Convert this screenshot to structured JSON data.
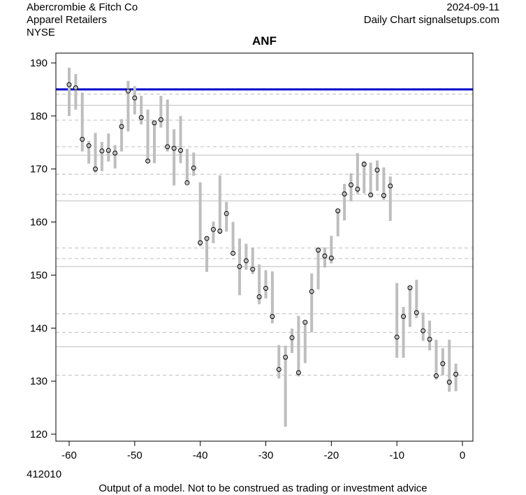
{
  "header": {
    "company": "Abercrombie & Fitch Co",
    "sector": "Apparel Retailers",
    "exchange": "NYSE",
    "date": "2024-09-11",
    "source": "Daily Chart signalsetups.com",
    "code": "412010",
    "disclaimer": "Output of a model. Not to be construed as trading or investment advice"
  },
  "chart_data": {
    "type": "range-bar",
    "title": "ANF",
    "xlim": [
      -62,
      1.5
    ],
    "ylim": [
      118,
      192
    ],
    "xticks": [
      -60,
      -50,
      -40,
      -30,
      -20,
      -10,
      0
    ],
    "yticks": [
      120,
      130,
      140,
      150,
      160,
      170,
      180,
      190
    ],
    "colors": {
      "bar": "#bebebe",
      "reference": "#0000cc",
      "grid": "#bebebe"
    },
    "reference_line": 185.0,
    "solid_levels": [
      182.0,
      172.6,
      164.0,
      151.6,
      136.5
    ],
    "dashed_levels": [
      184.1,
      179.2,
      174.2,
      169.0,
      165.2,
      155.1,
      153.1,
      142.7,
      139.2,
      131.1
    ],
    "x": [
      -60,
      -59,
      -58,
      -57,
      -56,
      -55,
      -54,
      -53,
      -52,
      -51,
      -50,
      -49,
      -48,
      -47,
      -46,
      -45,
      -44,
      -43,
      -42,
      -41,
      -40,
      -39,
      -38,
      -37,
      -36,
      -35,
      -34,
      -33,
      -32,
      -31,
      -30,
      -29,
      -28,
      -27,
      -26,
      -25,
      -24,
      -23,
      -22,
      -21,
      -20,
      -19,
      -18,
      -17,
      -16,
      -15,
      -14,
      -13,
      -12,
      -11,
      -10,
      -9,
      -8,
      -7,
      -6,
      -5,
      -4,
      -3,
      -2,
      -1
    ],
    "high": [
      189.1,
      187.9,
      184.4,
      175.3,
      176.8,
      175.1,
      176.7,
      174.5,
      179.4,
      186.6,
      185.6,
      183.8,
      181.2,
      179.1,
      183.8,
      183.1,
      177.5,
      180.0,
      173.8,
      173.1,
      167.5,
      157.3,
      160.1,
      168.8,
      163.8,
      160.0,
      156.9,
      155.9,
      155.2,
      152.0,
      150.9,
      150.7,
      136.8,
      136.7,
      139.9,
      142.3,
      141.4,
      150.3,
      155.2,
      155.2,
      157.4,
      162.4,
      167.2,
      169.2,
      173.0,
      171.5,
      171.2,
      171.6,
      170.3,
      168.6,
      148.5,
      144.0,
      147.9,
      149.1,
      142.9,
      141.4,
      137.8,
      136.2,
      137.8,
      133.3
    ],
    "low": [
      180.0,
      181.2,
      173.3,
      171.0,
      169.3,
      169.6,
      171.4,
      170.1,
      173.3,
      177.1,
      180.3,
      178.4,
      171.1,
      171.1,
      177.8,
      173.3,
      166.9,
      171.1,
      167.2,
      168.7,
      155.4,
      150.6,
      156.0,
      157.7,
      158.2,
      153.8,
      146.2,
      151.0,
      150.2,
      144.5,
      145.6,
      140.9,
      130.5,
      121.4,
      135.3,
      130.9,
      133.4,
      139.2,
      147.3,
      151.4,
      152.2,
      157.3,
      160.3,
      163.9,
      165.3,
      165.4,
      164.8,
      165.9,
      164.2,
      160.2,
      134.4,
      134.4,
      140.2,
      141.9,
      137.6,
      135.8,
      130.3,
      131.1,
      128.0,
      128.1
    ],
    "close": [
      185.9,
      185.3,
      175.6,
      174.4,
      170.0,
      173.4,
      173.5,
      173.0,
      178.0,
      184.7,
      183.4,
      179.7,
      171.5,
      178.7,
      179.3,
      174.2,
      173.9,
      173.5,
      167.4,
      170.2,
      156.1,
      156.9,
      158.6,
      158.3,
      161.6,
      154.1,
      151.6,
      152.7,
      151.1,
      145.9,
      147.5,
      142.2,
      132.2,
      134.5,
      138.2,
      131.6,
      141.1,
      146.9,
      154.7,
      153.6,
      153.2,
      162.1,
      165.3,
      167.0,
      166.2,
      170.9,
      165.1,
      169.8,
      165.0,
      166.8,
      138.3,
      142.2,
      147.6,
      142.9,
      139.5,
      137.9,
      131.0,
      133.3,
      129.8,
      131.3
    ]
  }
}
